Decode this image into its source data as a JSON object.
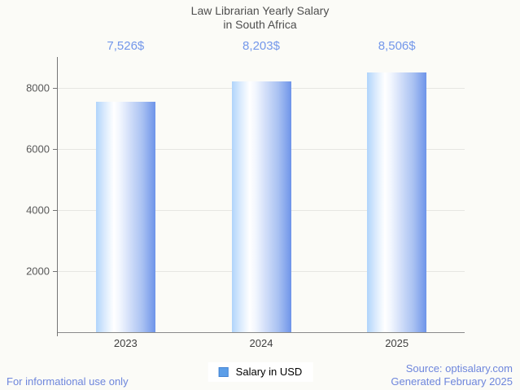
{
  "title": {
    "line1": "Law Librarian Yearly Salary",
    "line2": "in South Africa"
  },
  "chart_data": {
    "type": "bar",
    "title": "Law Librarian Yearly Salary in South Africa",
    "categories": [
      "2023",
      "2024",
      "2025"
    ],
    "values": [
      7526,
      8203,
      8506
    ],
    "value_labels": [
      "7,526$",
      "8,203$",
      "8,506$"
    ],
    "series_name": "Salary in USD",
    "xlabel": "",
    "ylabel": "",
    "ylim": [
      0,
      9000
    ],
    "yticks": [
      2000,
      4000,
      6000,
      8000
    ],
    "grid": true,
    "legend_position": "bottom-center"
  },
  "legend": {
    "label": "Salary in USD"
  },
  "footer": {
    "left": "For informational use only",
    "source": "Source: optisalary.com",
    "generated": "Generated February 2025"
  },
  "colors": {
    "background": "#fbfbf7",
    "bar_gradient_left": "#b0d4fb",
    "bar_gradient_mid": "#ffffff",
    "bar_gradient_right": "#6e94e9",
    "value_label_blue": "#7397ea",
    "footer_blue": "#6e86dc",
    "legend_swatch_fill": "#5c9ee8",
    "legend_swatch_border": "#4484d4",
    "gridline": "#e6e6e2",
    "axis_line": "#757575",
    "title_text": "#4e4e4e",
    "axis_text": "#585858"
  }
}
